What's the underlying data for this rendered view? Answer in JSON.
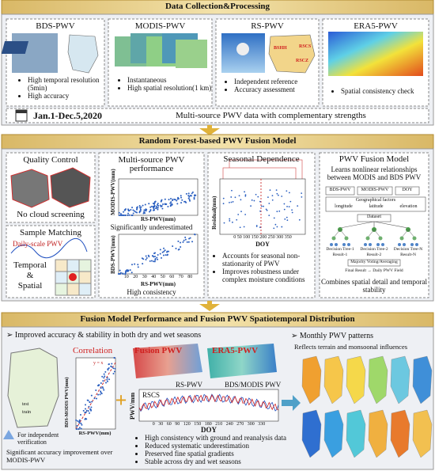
{
  "section1": {
    "title": "Data Collection&Processing",
    "panels": [
      {
        "title": "BDS-PWV",
        "bullets": [
          "High temporal resolution (5min)",
          "High accuracy"
        ]
      },
      {
        "title": "MODIS-PWV",
        "bullets": [
          "Instantaneous",
          "High spatial resolution(1 km)"
        ]
      },
      {
        "title": "RS-PWV",
        "bullets": [
          "Independent reference",
          "Accuracy assessment"
        ]
      },
      {
        "title": "ERA5-PWV",
        "bullets": [
          "Spatial consistency check"
        ]
      }
    ],
    "map_labels": [
      "BSHH",
      "RSCS",
      "RSCZ"
    ],
    "date": "Jan.1-Dec.5,2020",
    "summary": "Multi-source PWV data with complementary strengths"
  },
  "section2": {
    "title": "Random Forest-based PWV Fusion Model",
    "quality": {
      "title": "Quality Control",
      "caption": "No cloud screening"
    },
    "matching": {
      "title": "Sample Matching",
      "label": "Daily-scale PWV",
      "words": [
        "Temporal",
        "&",
        "Spatial"
      ]
    },
    "performance": {
      "title": "Multi-source PWV performance",
      "y1": "MODIS-PWV(mm)",
      "x": "RS-PWV(mm)",
      "caption1": "Significantly underestimated",
      "y2": "BDS-PWV(mm)",
      "ticks": "10 20 30 40 50 60 70 80",
      "caption2": "High consistency"
    },
    "seasonal": {
      "title": "Seasonal Dependence",
      "y": "Residual(mm)",
      "x": "DOY",
      "ticks": "0 50 100 150 200 250 300 350",
      "bullets": [
        "Accounts for seasonal non-stationarity of PWV",
        "Improves robustness under complex moisture conditions"
      ]
    },
    "fusion": {
      "title": "PWV Fusion Model",
      "subtitle": "Learns nonlinear relationships between MODIS and BDS PWV",
      "inputs": [
        "BDS-PWV",
        "MODIS-PWV",
        "DOY"
      ],
      "geo": "Geographical factors",
      "geo_items": [
        "longitude",
        "latitude",
        "elevation"
      ],
      "dataset": "Dataset",
      "trees": [
        "Decision Tree-1",
        "Decision Tree-2",
        "Decision Tree-N"
      ],
      "results": [
        "Result-1",
        "Result-2",
        "Result-N"
      ],
      "vote": "Majority Voting/Averaging",
      "final": "Final Result → Daily PWV Field",
      "caption": "Combines spatial detail and temporal stability"
    }
  },
  "section3": {
    "title": "Fusion Model Performance and Fusion PWV Spatiotemporal Distribution",
    "headline": "➢ Improved accuracy & stability in both dry and wet seasons",
    "legend": [
      "test",
      "train"
    ],
    "verification": "For independent verification",
    "improvement": "Significant accuracy improvement over MODIS-PWV",
    "correlation": {
      "title": "Correlation",
      "y": "BDS-MODIS PWV(mm)",
      "x": "RS-PWV(mm)",
      "line": "y = x"
    },
    "maps": [
      "Fusion PWV",
      "ERA5-PWV"
    ],
    "series": {
      "labels": [
        "RS-PWV",
        "BDS/MODIS PWV"
      ],
      "station": "RSCS",
      "y": "PWV/mm",
      "x": "DOY",
      "ticks": "0 30 60 90 120 150 180 210 240 270 300 330"
    },
    "bullets": [
      "High consistency with ground and reanalysis data",
      "Reduced systematic underestimation",
      "Preserved fine spatial gradients",
      "Stable across dry and wet seasons"
    ],
    "monthly": {
      "title": "➢ Monthly PWV patterns",
      "subtitle": "Reflects terrain and monsoonal influences"
    }
  }
}
